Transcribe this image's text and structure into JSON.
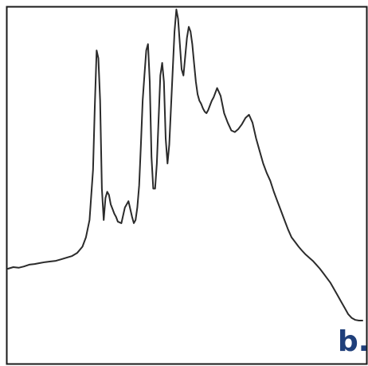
{
  "panel_label": "b.",
  "colors": {
    "frame": "#1a1a1a",
    "line": "#2b2b2b",
    "panel_label": "#1f3f7a",
    "background": "#ffffff"
  },
  "chart_data": {
    "type": "line",
    "title": "",
    "xlabel": "",
    "ylabel": "",
    "xlim": [
      0,
      1
    ],
    "ylim": [
      0,
      1
    ],
    "grid": false,
    "axes_ticks": false,
    "series": [
      {
        "x": [
          0.0,
          0.015,
          0.03,
          0.045,
          0.06,
          0.075,
          0.09,
          0.105,
          0.12,
          0.135,
          0.15,
          0.165,
          0.18,
          0.195,
          0.21,
          0.22,
          0.23,
          0.24,
          0.245,
          0.25,
          0.255,
          0.26,
          0.265,
          0.27,
          0.275,
          0.28,
          0.285,
          0.29,
          0.295,
          0.3,
          0.305,
          0.31,
          0.32,
          0.33,
          0.34,
          0.35,
          0.355,
          0.36,
          0.365,
          0.37,
          0.375,
          0.38,
          0.385,
          0.39,
          0.395,
          0.4,
          0.405,
          0.41,
          0.415,
          0.42,
          0.425,
          0.43,
          0.435,
          0.44,
          0.445,
          0.45,
          0.455,
          0.46,
          0.465,
          0.47,
          0.475,
          0.48,
          0.485,
          0.49,
          0.495,
          0.5,
          0.505,
          0.51,
          0.515,
          0.52,
          0.525,
          0.53,
          0.535,
          0.54,
          0.545,
          0.55,
          0.555,
          0.56,
          0.565,
          0.57,
          0.575,
          0.58,
          0.59,
          0.6,
          0.61,
          0.62,
          0.63,
          0.64,
          0.65,
          0.66,
          0.67,
          0.68,
          0.69,
          0.7,
          0.71,
          0.72,
          0.73,
          0.74,
          0.75,
          0.76,
          0.77,
          0.78,
          0.79,
          0.8,
          0.81,
          0.82,
          0.83,
          0.84,
          0.85,
          0.86,
          0.87,
          0.88,
          0.89,
          0.9,
          0.91,
          0.92,
          0.93,
          0.94,
          0.95,
          0.96,
          0.97,
          0.98,
          0.99,
          1.0
        ],
        "y": [
          0.165,
          0.17,
          0.168,
          0.172,
          0.178,
          0.18,
          0.183,
          0.186,
          0.188,
          0.19,
          0.195,
          0.2,
          0.205,
          0.215,
          0.235,
          0.265,
          0.32,
          0.48,
          0.68,
          0.86,
          0.835,
          0.7,
          0.42,
          0.32,
          0.39,
          0.41,
          0.4,
          0.37,
          0.355,
          0.34,
          0.33,
          0.315,
          0.31,
          0.36,
          0.38,
          0.33,
          0.31,
          0.32,
          0.36,
          0.43,
          0.56,
          0.7,
          0.78,
          0.86,
          0.88,
          0.76,
          0.52,
          0.42,
          0.42,
          0.5,
          0.64,
          0.78,
          0.82,
          0.76,
          0.58,
          0.5,
          0.56,
          0.68,
          0.8,
          0.92,
          0.99,
          0.96,
          0.88,
          0.8,
          0.78,
          0.84,
          0.9,
          0.935,
          0.92,
          0.88,
          0.82,
          0.76,
          0.72,
          0.7,
          0.69,
          0.675,
          0.665,
          0.66,
          0.67,
          0.685,
          0.7,
          0.71,
          0.74,
          0.715,
          0.66,
          0.63,
          0.605,
          0.6,
          0.61,
          0.625,
          0.645,
          0.655,
          0.63,
          0.58,
          0.54,
          0.5,
          0.47,
          0.445,
          0.41,
          0.38,
          0.35,
          0.32,
          0.29,
          0.265,
          0.25,
          0.235,
          0.222,
          0.21,
          0.2,
          0.19,
          0.178,
          0.165,
          0.15,
          0.135,
          0.12,
          0.1,
          0.08,
          0.06,
          0.04,
          0.02,
          0.008,
          0.002,
          0.0,
          0.0
        ]
      }
    ]
  }
}
